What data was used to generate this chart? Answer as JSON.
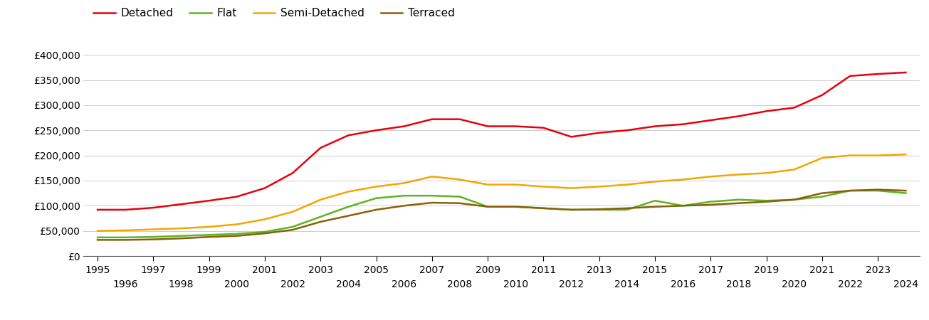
{
  "series": {
    "Detached": {
      "color": "#e8000d",
      "years": [
        1995,
        1996,
        1997,
        1998,
        1999,
        2000,
        2001,
        2002,
        2003,
        2004,
        2005,
        2006,
        2007,
        2008,
        2009,
        2010,
        2011,
        2012,
        2013,
        2014,
        2015,
        2016,
        2017,
        2018,
        2019,
        2020,
        2021,
        2022,
        2023,
        2024
      ],
      "values": [
        92000,
        92000,
        96000,
        103000,
        110000,
        118000,
        135000,
        165000,
        215000,
        240000,
        250000,
        258000,
        272000,
        272000,
        258000,
        258000,
        255000,
        237000,
        245000,
        250000,
        258000,
        262000,
        270000,
        278000,
        288000,
        295000,
        320000,
        358000,
        362000,
        365000
      ]
    },
    "Flat": {
      "color": "#5ab521",
      "years": [
        1995,
        1996,
        1997,
        1998,
        1999,
        2000,
        2001,
        2002,
        2003,
        2004,
        2005,
        2006,
        2007,
        2008,
        2009,
        2010,
        2011,
        2012,
        2013,
        2014,
        2015,
        2016,
        2017,
        2018,
        2019,
        2020,
        2021,
        2022,
        2023,
        2024
      ],
      "values": [
        37000,
        37000,
        38000,
        40000,
        42000,
        44000,
        48000,
        58000,
        78000,
        98000,
        115000,
        120000,
        120000,
        118000,
        98000,
        98000,
        95000,
        92000,
        92000,
        92000,
        110000,
        100000,
        108000,
        112000,
        110000,
        112000,
        118000,
        130000,
        130000,
        125000
      ]
    },
    "Semi-Detached": {
      "color": "#f5a500",
      "years": [
        1995,
        1996,
        1997,
        1998,
        1999,
        2000,
        2001,
        2002,
        2003,
        2004,
        2005,
        2006,
        2007,
        2008,
        2009,
        2010,
        2011,
        2012,
        2013,
        2014,
        2015,
        2016,
        2017,
        2018,
        2019,
        2020,
        2021,
        2022,
        2023,
        2024
      ],
      "values": [
        50000,
        51000,
        53000,
        55000,
        58000,
        63000,
        73000,
        88000,
        112000,
        128000,
        138000,
        145000,
        158000,
        152000,
        142000,
        142000,
        138000,
        135000,
        138000,
        142000,
        148000,
        152000,
        158000,
        162000,
        165000,
        172000,
        195000,
        200000,
        200000,
        202000
      ]
    },
    "Terraced": {
      "color": "#8B5E0A",
      "years": [
        1995,
        1996,
        1997,
        1998,
        1999,
        2000,
        2001,
        2002,
        2003,
        2004,
        2005,
        2006,
        2007,
        2008,
        2009,
        2010,
        2011,
        2012,
        2013,
        2014,
        2015,
        2016,
        2017,
        2018,
        2019,
        2020,
        2021,
        2022,
        2023,
        2024
      ],
      "values": [
        32000,
        32000,
        33000,
        35000,
        38000,
        40000,
        45000,
        52000,
        68000,
        80000,
        92000,
        100000,
        106000,
        105000,
        98000,
        98000,
        95000,
        92000,
        93000,
        95000,
        98000,
        100000,
        102000,
        105000,
        108000,
        112000,
        125000,
        130000,
        132000,
        130000
      ]
    }
  },
  "ylim": [
    0,
    420000
  ],
  "yticks": [
    0,
    50000,
    100000,
    150000,
    200000,
    250000,
    300000,
    350000,
    400000
  ],
  "xlim": [
    1994.5,
    2024.5
  ],
  "odd_years": [
    1995,
    1997,
    1999,
    2001,
    2003,
    2005,
    2007,
    2009,
    2011,
    2013,
    2015,
    2017,
    2019,
    2021,
    2023
  ],
  "even_years": [
    1996,
    1998,
    2000,
    2002,
    2004,
    2006,
    2008,
    2010,
    2012,
    2014,
    2016,
    2018,
    2020,
    2022,
    2024
  ],
  "background_color": "#ffffff",
  "grid_color": "#cccccc",
  "legend_order": [
    "Detached",
    "Flat",
    "Semi-Detached",
    "Terraced"
  ]
}
